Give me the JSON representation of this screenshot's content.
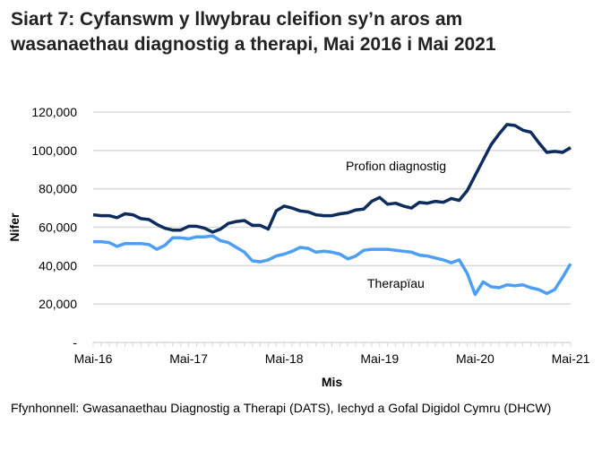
{
  "title": "Siart 7: Cyfanswm y llwybrau cleifion sy’n aros am wasanaethau diagnostig a therapi, Mai 2016 i Mai 2021",
  "source": "Ffynhonnell: Gwasanaethau Diagnostig a Therapi (DATS), Iechyd a Gofal Digidol Cymru (DHCW)",
  "chart_data": {
    "type": "line",
    "xlabel": "Mis",
    "ylabel": "Nifer",
    "ylim": [
      0,
      120000
    ],
    "yticks": [
      0,
      20000,
      40000,
      60000,
      80000,
      100000,
      120000
    ],
    "ytick_labels": [
      "-",
      "20,000",
      "40,000",
      "60,000",
      "80,000",
      "100,000",
      "120,000"
    ],
    "xtick_labels": [
      "Mai-16",
      "Mai-17",
      "Mai-18",
      "Mai-19",
      "Mai-20",
      "Mai-21"
    ],
    "x_start": "May 2016",
    "x_end": "May 2021",
    "frequency": "monthly",
    "grid": "horizontal",
    "series": [
      {
        "name": "Profion diagnostig",
        "color": "#0d2c5e",
        "values": [
          66500,
          66000,
          66000,
          65000,
          67000,
          66500,
          64500,
          64000,
          61500,
          59500,
          58500,
          58500,
          60500,
          60500,
          59500,
          57500,
          59000,
          62000,
          63000,
          63500,
          61000,
          61000,
          59000,
          68500,
          71000,
          70000,
          68500,
          68000,
          66500,
          66000,
          66000,
          67000,
          67500,
          69000,
          69500,
          73500,
          75500,
          72000,
          72500,
          71000,
          70000,
          73000,
          72500,
          73500,
          73000,
          75000,
          74000,
          79000,
          87000,
          95000,
          103000,
          108500,
          113500,
          113000,
          110500,
          109500,
          104000,
          99000,
          99500,
          99000,
          101500
        ]
      },
      {
        "name": "Therapïau",
        "color": "#4d9ff5",
        "values": [
          52500,
          52500,
          52000,
          50000,
          51500,
          51500,
          51500,
          51000,
          48500,
          50500,
          54500,
          54500,
          54000,
          55000,
          55000,
          55500,
          53000,
          52000,
          49500,
          47000,
          42500,
          42000,
          43000,
          45000,
          46000,
          47500,
          49500,
          49000,
          47000,
          47500,
          47000,
          46000,
          43500,
          45000,
          48000,
          48500,
          48500,
          48500,
          48000,
          47500,
          47000,
          45500,
          45000,
          44000,
          43000,
          41500,
          43000,
          36000,
          25000,
          31500,
          29000,
          28500,
          30000,
          29500,
          30000,
          28500,
          27500,
          25500,
          27500,
          34000,
          41000
        ]
      }
    ]
  }
}
